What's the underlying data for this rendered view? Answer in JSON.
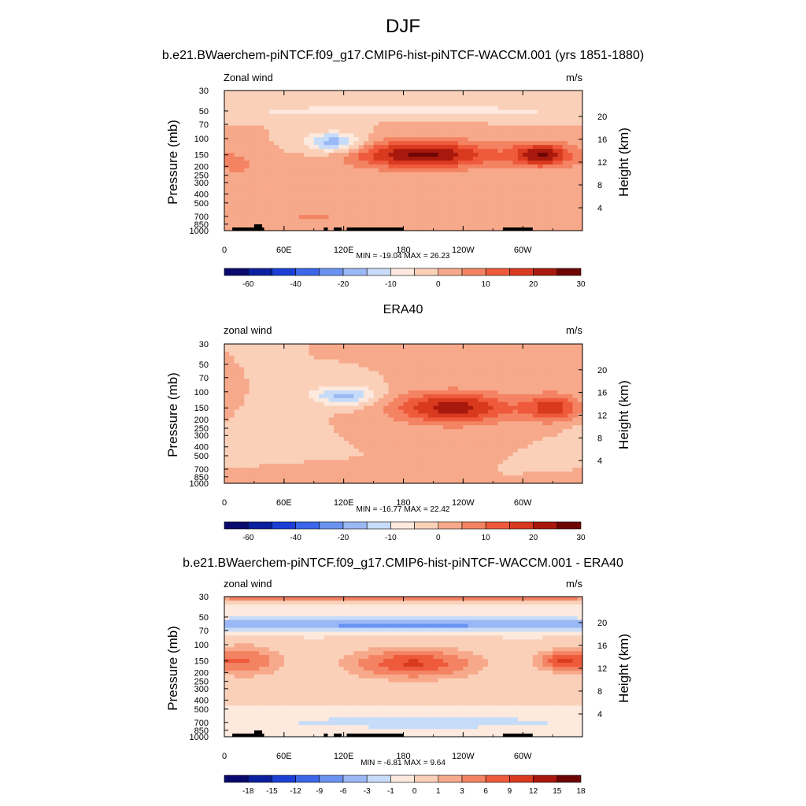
{
  "title": "DJF",
  "panels": [
    {
      "id": "model",
      "title": "b.e21.BWaerchem-piNTCF.f09_g17.CMIP6-hist-piNTCF-WACCM.001 (yrs 1851-1880)",
      "left_label": "Zonal wind",
      "units": "m/s",
      "ylabel": "Pressure (mb)",
      "ylabel_right": "Height (km)",
      "stats": "MIN = -19.04  MAX =  26.23"
    },
    {
      "id": "obs",
      "title": "ERA40",
      "left_label": "zonal wind",
      "units": "m/s",
      "ylabel": "Pressure (mb)",
      "ylabel_right": "Height (km)",
      "stats": "MIN = -16.77  MAX =  22.42"
    },
    {
      "id": "diff",
      "title": "b.e21.BWaerchem-piNTCF.f09_g17.CMIP6-hist-piNTCF-WACCM.001 - ERA40",
      "left_label": "zonal wind",
      "units": "m/s",
      "ylabel": "Pressure (mb)",
      "ylabel_right": "Height (km)",
      "stats": "MIN =  -6.81  MAX =   9.64"
    }
  ],
  "colors": {
    "full_scale": [
      "#0a0a6e",
      "#0c1f9e",
      "#1b3fd4",
      "#3c66e8",
      "#6a92f0",
      "#9ab8f5",
      "#c6dcf9",
      "#fde9dd",
      "#fbd0b9",
      "#f7a98b",
      "#f38362",
      "#ee5a3b",
      "#d93a1f",
      "#a8180d",
      "#6e0505"
    ],
    "diff_scale": [
      "#0a0a6e",
      "#0c1f9e",
      "#1b3fd4",
      "#3c66e8",
      "#6a92f0",
      "#9ab8f5",
      "#c6dcf9",
      "#fde9dd",
      "#fbd0b9",
      "#f7a98b",
      "#f38362",
      "#ee5a3b",
      "#d93a1f",
      "#a8180d",
      "#6e0505"
    ]
  },
  "chart_data": [
    {
      "type": "heatmap",
      "title": "b.e21.BWaerchem-piNTCF.f09_g17.CMIP6-hist-piNTCF-WACCM.001 (yrs 1851-1880)",
      "ylabel": "Pressure (mb)",
      "ylabel_right": "Height (km)",
      "x_ticks": [
        "0",
        "60E",
        "120E",
        "180",
        "120W",
        "60W"
      ],
      "x_tick_values": [
        0,
        60,
        120,
        180,
        240,
        300
      ],
      "x_range": [
        0,
        360
      ],
      "y_ticks": [
        "30",
        "50",
        "70",
        "100",
        "150",
        "200",
        "250",
        "300",
        "400",
        "500",
        "700",
        "850",
        "1000"
      ],
      "y_range": [
        30,
        1000
      ],
      "y_log": true,
      "height_ticks": [
        "4",
        "8",
        "12",
        "16",
        "20"
      ],
      "height_tick_values": [
        4,
        8,
        12,
        16,
        20
      ],
      "colorbar_labels": [
        "-60",
        "-40",
        "-20",
        "-10",
        "0",
        "10",
        "20",
        "30"
      ],
      "levels": [
        -70,
        -60,
        -50,
        -40,
        -30,
        -20,
        -15,
        -10,
        -5,
        0,
        5,
        10,
        15,
        20,
        25,
        30
      ],
      "min": -19.04,
      "max": 26.23,
      "features": [
        {
          "lon": 200,
          "p": 150,
          "value": 26.2,
          "rx": 70,
          "rlogp": 0.35
        },
        {
          "lon": 320,
          "p": 150,
          "value": 24,
          "rx": 30,
          "rlogp": 0.3
        },
        {
          "lon": 110,
          "p": 110,
          "value": -19,
          "rx": 28,
          "rlogp": 0.25
        },
        {
          "lon": 15,
          "p": 200,
          "value": 6,
          "rx": 20,
          "rlogp": 0.4
        },
        {
          "lon": 90,
          "p": 700,
          "value": 6,
          "rx": 40,
          "rlogp": 0.15
        },
        {
          "lon": 180,
          "p": 50,
          "value": -8,
          "rx": 200,
          "rlogp": 0.15
        }
      ]
    },
    {
      "type": "heatmap",
      "title": "ERA40",
      "ylabel": "Pressure (mb)",
      "ylabel_right": "Height (km)",
      "x_ticks": [
        "0",
        "60E",
        "120E",
        "180",
        "120W",
        "60W"
      ],
      "x_tick_values": [
        0,
        60,
        120,
        180,
        240,
        300
      ],
      "x_range": [
        0,
        360
      ],
      "y_ticks": [
        "30",
        "50",
        "70",
        "100",
        "150",
        "200",
        "250",
        "300",
        "400",
        "500",
        "700",
        "850",
        "1000"
      ],
      "y_range": [
        30,
        1000
      ],
      "y_log": true,
      "height_ticks": [
        "4",
        "8",
        "12",
        "16",
        "20"
      ],
      "height_tick_values": [
        4,
        8,
        12,
        16,
        20
      ],
      "colorbar_labels": [
        "-60",
        "-40",
        "-20",
        "-10",
        "0",
        "10",
        "20",
        "30"
      ],
      "levels": [
        -70,
        -60,
        -50,
        -40,
        -30,
        -20,
        -15,
        -10,
        -5,
        0,
        5,
        10,
        15,
        20,
        25,
        30
      ],
      "min": -16.77,
      "max": 22.42,
      "features": [
        {
          "lon": 230,
          "p": 150,
          "value": 22.4,
          "rx": 60,
          "rlogp": 0.4
        },
        {
          "lon": 330,
          "p": 150,
          "value": 17,
          "rx": 28,
          "rlogp": 0.35
        },
        {
          "lon": 120,
          "p": 110,
          "value": -16.8,
          "rx": 32,
          "rlogp": 0.25
        },
        {
          "lon": 30,
          "p": 250,
          "value": -4,
          "rx": 40,
          "rlogp": 0.5
        },
        {
          "lon": 100,
          "p": 800,
          "value": 4,
          "rx": 50,
          "rlogp": 0.15
        }
      ]
    },
    {
      "type": "heatmap",
      "title": "b.e21.BWaerchem-piNTCF.f09_g17.CMIP6-hist-piNTCF-WACCM.001 - ERA40",
      "ylabel": "Pressure (mb)",
      "ylabel_right": "Height (km)",
      "x_ticks": [
        "0",
        "60E",
        "120E",
        "180",
        "120W",
        "60W"
      ],
      "x_tick_values": [
        0,
        60,
        120,
        180,
        240,
        300
      ],
      "x_range": [
        0,
        360
      ],
      "y_ticks": [
        "30",
        "50",
        "70",
        "100",
        "150",
        "200",
        "250",
        "300",
        "400",
        "500",
        "700",
        "850",
        "1000"
      ],
      "y_range": [
        30,
        1000
      ],
      "y_log": true,
      "height_ticks": [
        "4",
        "8",
        "12",
        "16",
        "20"
      ],
      "height_tick_values": [
        4,
        8,
        12,
        16,
        20
      ],
      "colorbar_labels": [
        "-18",
        "-15",
        "-12",
        "-9",
        "-6",
        "-3",
        "-1",
        "0",
        "1",
        "3",
        "6",
        "9",
        "12",
        "15",
        "18"
      ],
      "levels": [
        -21,
        -18,
        -15,
        -12,
        -9,
        -6,
        -3,
        -1,
        0,
        1,
        3,
        6,
        9,
        12,
        15,
        18
      ],
      "min": -6.81,
      "max": 9.64,
      "features": [
        {
          "lon": 180,
          "p": 30,
          "value": 7,
          "rx": 400,
          "rlogp": 0.06
        },
        {
          "lon": 180,
          "p": 60,
          "value": -6.8,
          "rx": 400,
          "rlogp": 0.12
        },
        {
          "lon": 190,
          "p": 160,
          "value": 9.6,
          "rx": 50,
          "rlogp": 0.3
        },
        {
          "lon": 340,
          "p": 150,
          "value": 9,
          "rx": 20,
          "rlogp": 0.2
        },
        {
          "lon": 20,
          "p": 150,
          "value": 6,
          "rx": 30,
          "rlogp": 0.3
        },
        {
          "lon": 200,
          "p": 700,
          "value": -3,
          "rx": 120,
          "rlogp": 0.12
        }
      ]
    }
  ]
}
